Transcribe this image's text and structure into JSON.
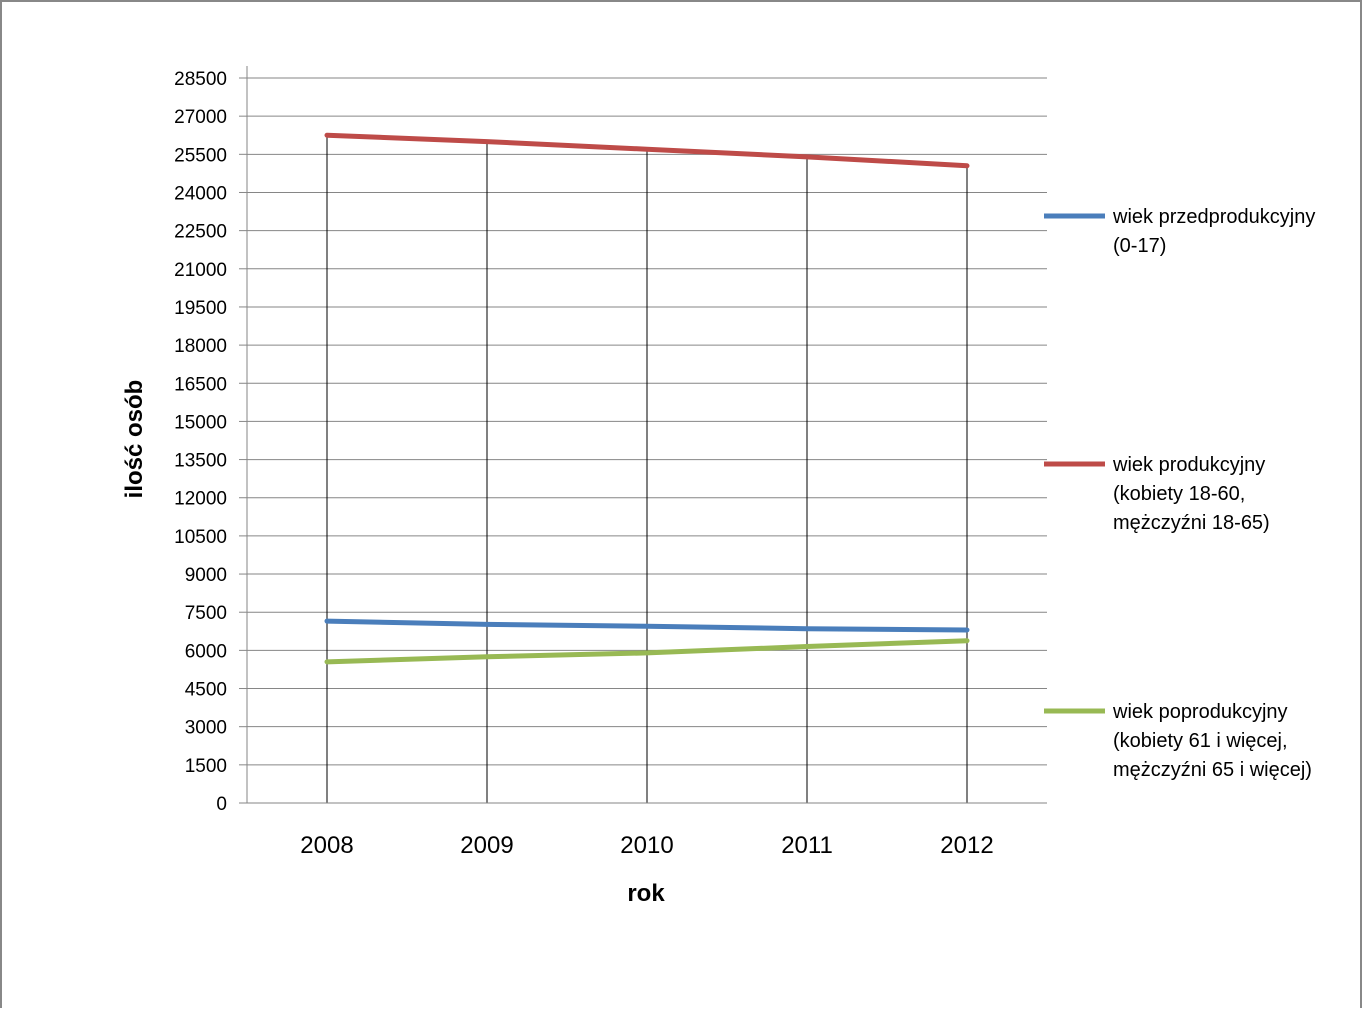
{
  "chart_data": {
    "type": "line",
    "title": "",
    "xlabel": "rok",
    "ylabel": "ilość osób",
    "categories": [
      "2008",
      "2009",
      "2010",
      "2011",
      "2012"
    ],
    "ylim": [
      0,
      28500
    ],
    "yticks": [
      0,
      1500,
      3000,
      4500,
      6000,
      7500,
      9000,
      10500,
      12000,
      13500,
      15000,
      16500,
      18000,
      19500,
      21000,
      22500,
      24000,
      25500,
      27000,
      28500
    ],
    "grid": true,
    "legend_position": "right",
    "series": [
      {
        "name": "wiek przedprodukcyjny (0-17)",
        "legend_lines": [
          "wiek przedprodukcyjny",
          "(0-17)"
        ],
        "color": "#4a7ebb",
        "values": [
          7150,
          7020,
          6950,
          6850,
          6800
        ]
      },
      {
        "name": "wiek produkcyjny (kobiety 18-60, mężczyźni 18-65)",
        "legend_lines": [
          "wiek produkcyjny",
          "(kobiety 18-60,",
          "mężczyźni 18-65)"
        ],
        "color": "#be4b48",
        "values": [
          26250,
          26000,
          25700,
          25400,
          25050
        ]
      },
      {
        "name": "wiek poprodukcyjny (kobiety 61 i więcej, mężczyźni 65 i więcej)",
        "legend_lines": [
          "wiek poprodukcyjny",
          "(kobiety 61 i więcej,",
          "mężczyźni 65 i więcej)"
        ],
        "color": "#98b954",
        "values": [
          5550,
          5750,
          5900,
          6150,
          6380
        ]
      }
    ]
  }
}
